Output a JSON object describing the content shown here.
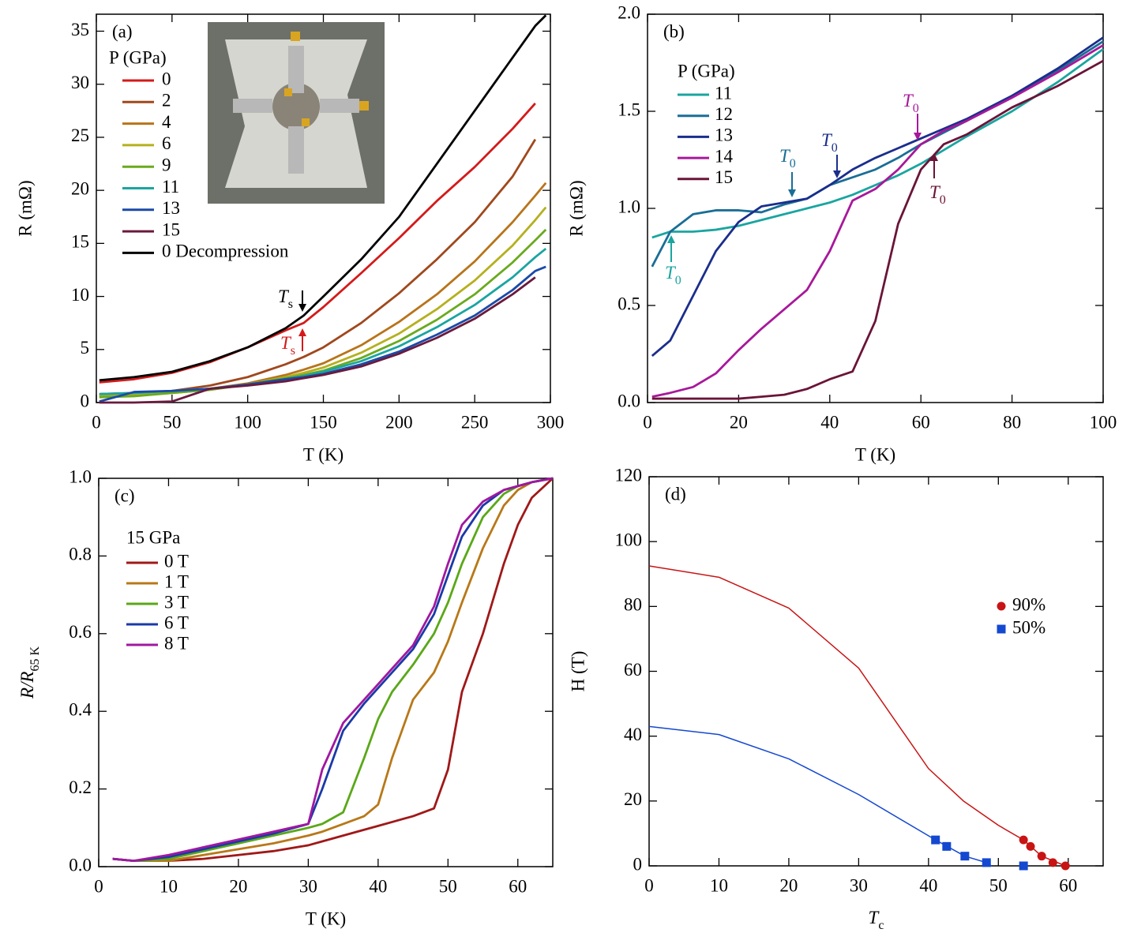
{
  "chart_data": [
    {
      "type": "line",
      "panel_label": "(a)",
      "xlabel": "T (K)",
      "ylabel": "R (mΩ)",
      "legend_title": "P (GPa)",
      "xlim": [
        0,
        300
      ],
      "ylim": [
        0,
        36.6
      ],
      "xticks": [
        0,
        50,
        100,
        150,
        200,
        250,
        300
      ],
      "yticks": [
        0,
        5,
        10,
        15,
        20,
        25,
        30,
        35
      ],
      "x": [
        2,
        25,
        50,
        75,
        100,
        125,
        137,
        150,
        175,
        200,
        225,
        250,
        275,
        290,
        297
      ],
      "series": [
        {
          "name": "0",
          "color": "#d41a1a",
          "values": [
            1.9,
            2.2,
            2.8,
            3.8,
            5.2,
            6.8,
            7.5,
            9,
            12.2,
            15.5,
            19,
            22.2,
            25.8,
            28.2,
            null
          ]
        },
        {
          "name": "2",
          "color": "#a0481d",
          "values": [
            0.8,
            0.9,
            1.1,
            1.6,
            2.4,
            3.6,
            4.3,
            5.2,
            7.5,
            10.3,
            13.5,
            17,
            21.3,
            24.8,
            null
          ]
        },
        {
          "name": "4",
          "color": "#b8741a",
          "values": [
            0.7,
            0.8,
            1.0,
            1.3,
            1.8,
            2.6,
            3.1,
            3.7,
            5.4,
            7.6,
            10.2,
            13.3,
            17,
            19.5,
            20.7
          ]
        },
        {
          "name": "6",
          "color": "#b5b01e",
          "values": [
            0.6,
            0.7,
            0.9,
            1.2,
            1.7,
            2.4,
            2.8,
            3.3,
            4.7,
            6.5,
            8.8,
            11.5,
            14.8,
            17.2,
            18.4
          ]
        },
        {
          "name": "9",
          "color": "#6aaa1e",
          "values": [
            0.5,
            0.6,
            0.9,
            1.2,
            1.7,
            2.3,
            2.6,
            3.0,
            4.2,
            5.8,
            7.8,
            10.2,
            13.2,
            15.3,
            16.3
          ]
        },
        {
          "name": "11",
          "color": "#1aa5a0",
          "values": [
            0.8,
            0.9,
            1.1,
            1.3,
            1.7,
            2.2,
            2.5,
            2.9,
            3.9,
            5.3,
            7.1,
            9.2,
            11.8,
            13.7,
            14.5
          ]
        },
        {
          "name": "13",
          "color": "#1a4aa8",
          "values": [
            0.1,
            1.0,
            1.1,
            1.3,
            1.7,
            2.2,
            2.4,
            2.7,
            3.6,
            4.8,
            6.4,
            8.2,
            10.6,
            12.4,
            12.8
          ]
        },
        {
          "name": "15",
          "color": "#6a1a3e",
          "values": [
            0.0,
            0.0,
            0.1,
            1.3,
            1.6,
            2.0,
            2.3,
            2.6,
            3.4,
            4.6,
            6.1,
            7.9,
            10.2,
            11.8,
            null
          ]
        },
        {
          "name": "0 Decompression",
          "color": "#000000",
          "values": [
            2.1,
            2.4,
            2.9,
            3.9,
            5.2,
            7.0,
            8.2,
            10,
            13.5,
            17.5,
            22.5,
            27.5,
            32.5,
            35.5,
            36.5
          ]
        }
      ],
      "annotations": [
        {
          "text": "T",
          "sub": "s",
          "color": "#000000"
        },
        {
          "text": "T",
          "sub": "s",
          "color": "#d41a1a"
        }
      ]
    },
    {
      "type": "line",
      "panel_label": "(b)",
      "xlabel": "T (K)",
      "ylabel": "R (mΩ)",
      "legend_title": "P (GPa)",
      "xlim": [
        0,
        100
      ],
      "ylim": [
        0,
        2
      ],
      "xticks": [
        0,
        20,
        40,
        60,
        80,
        100
      ],
      "yticks": [
        {
          "value": 0,
          "label": "0.0"
        },
        0.5,
        {
          "value": 1,
          "label": "1.0"
        },
        1.5,
        {
          "value": 2,
          "label": "2.0"
        }
      ],
      "x": [
        1,
        5,
        10,
        15,
        20,
        25,
        30,
        35,
        40,
        45,
        50,
        55,
        60,
        65,
        70,
        80,
        90,
        100
      ],
      "series": [
        {
          "name": "11",
          "color": "#1aa5a0",
          "values": [
            0.85,
            0.88,
            0.88,
            0.89,
            0.91,
            0.94,
            0.97,
            1.0,
            1.03,
            1.07,
            1.12,
            1.17,
            1.23,
            1.3,
            1.37,
            1.5,
            1.65,
            1.82
          ]
        },
        {
          "name": "12",
          "color": "#1a6e96",
          "values": [
            0.7,
            0.88,
            0.97,
            0.99,
            0.99,
            0.98,
            1.02,
            1.05,
            1.12,
            1.16,
            1.2,
            1.26,
            1.33,
            1.39,
            1.45,
            1.58,
            1.71,
            1.86
          ]
        },
        {
          "name": "13",
          "color": "#1a2e8c",
          "values": [
            0.24,
            0.32,
            0.55,
            0.78,
            0.93,
            1.01,
            1.03,
            1.05,
            1.12,
            1.2,
            1.26,
            1.31,
            1.36,
            1.41,
            1.46,
            1.58,
            1.72,
            1.88
          ]
        },
        {
          "name": "14",
          "color": "#a8189a",
          "values": [
            0.03,
            0.05,
            0.08,
            0.15,
            0.27,
            0.38,
            0.48,
            0.58,
            0.78,
            1.04,
            1.1,
            1.2,
            1.33,
            1.4,
            1.45,
            1.57,
            1.7,
            1.84
          ]
        },
        {
          "name": "15",
          "color": "#6a1438",
          "values": [
            0.02,
            0.02,
            0.02,
            0.02,
            0.02,
            0.03,
            0.04,
            0.07,
            0.12,
            0.16,
            0.42,
            0.92,
            1.2,
            1.33,
            1.38,
            1.52,
            1.63,
            1.76
          ]
        }
      ],
      "annotations": [
        {
          "text": "T",
          "sub": "0",
          "color": "#1aa5a0"
        },
        {
          "text": "T",
          "sub": "0",
          "color": "#1a6e96"
        },
        {
          "text": "T",
          "sub": "0",
          "color": "#1a2e8c"
        },
        {
          "text": "T",
          "sub": "0",
          "color": "#a8189a"
        },
        {
          "text": "T",
          "sub": "0",
          "color": "#6a1438"
        }
      ]
    },
    {
      "type": "line",
      "panel_label": "(c)",
      "xlabel": "T (K)",
      "ylabel": {
        "text": "R/R",
        "sub": "65 K"
      },
      "legend_title": "15 GPa",
      "xlim": [
        0,
        65
      ],
      "ylim": [
        0,
        1
      ],
      "xticks": [
        0,
        10,
        20,
        30,
        40,
        50,
        60
      ],
      "yticks": [
        {
          "value": 0,
          "label": "0.0"
        },
        0.2,
        0.4,
        0.6,
        0.8,
        {
          "value": 1,
          "label": "1.0"
        }
      ],
      "x": [
        2,
        5,
        10,
        15,
        20,
        25,
        30,
        32,
        35,
        38,
        40,
        42,
        45,
        48,
        50,
        52,
        55,
        58,
        60,
        62,
        65
      ],
      "series": [
        {
          "name": "0 T",
          "color": "#a01818",
          "values": [
            0.02,
            0.015,
            0.015,
            0.02,
            0.03,
            0.04,
            0.055,
            0.065,
            0.08,
            0.095,
            0.105,
            0.115,
            0.13,
            0.15,
            0.25,
            0.45,
            0.6,
            0.78,
            0.88,
            0.95,
            1.0
          ]
        },
        {
          "name": "1 T",
          "color": "#b87818",
          "values": [
            0.02,
            0.015,
            0.015,
            0.03,
            0.045,
            0.06,
            0.08,
            0.09,
            0.11,
            0.13,
            0.16,
            0.28,
            0.43,
            0.5,
            0.58,
            0.68,
            0.82,
            0.93,
            0.97,
            0.99,
            1.0
          ]
        },
        {
          "name": "3 T",
          "color": "#5aa818",
          "values": [
            0.02,
            0.015,
            0.02,
            0.04,
            0.06,
            0.08,
            0.1,
            0.11,
            0.14,
            0.28,
            0.38,
            0.45,
            0.52,
            0.6,
            0.68,
            0.78,
            0.9,
            0.96,
            0.98,
            0.99,
            1.0
          ]
        },
        {
          "name": "6 T",
          "color": "#1a3aa8",
          "values": [
            0.02,
            0.015,
            0.025,
            0.045,
            0.065,
            0.085,
            0.11,
            0.2,
            0.35,
            0.42,
            0.46,
            0.5,
            0.56,
            0.65,
            0.75,
            0.85,
            0.93,
            0.97,
            0.98,
            0.99,
            1.0
          ]
        },
        {
          "name": "8 T",
          "color": "#a018a0",
          "values": [
            0.02,
            0.015,
            0.03,
            0.05,
            0.07,
            0.09,
            0.11,
            0.25,
            0.37,
            0.43,
            0.47,
            0.51,
            0.57,
            0.67,
            0.78,
            0.88,
            0.94,
            0.97,
            0.98,
            0.99,
            1.0
          ]
        }
      ]
    },
    {
      "type": "scatter",
      "panel_label": "(d)",
      "xlabel": {
        "text": "T",
        "sub": "c"
      },
      "ylabel": "H (T)",
      "xlim": [
        0,
        65
      ],
      "ylim": [
        0,
        120
      ],
      "xticks": [
        0,
        10,
        20,
        30,
        40,
        50,
        60
      ],
      "yticks": [
        0,
        20,
        40,
        60,
        80,
        100,
        120
      ],
      "series": [
        {
          "name": "90%",
          "color": "#c81414",
          "marker": "circle",
          "x": [
            53.6,
            54.6,
            56.2,
            57.8,
            59.6
          ],
          "values": [
            8,
            6,
            3,
            1,
            0
          ]
        },
        {
          "name": "50%",
          "color": "#1448d0",
          "marker": "square",
          "x": [
            41,
            42.6,
            45.2,
            48.3,
            53.6
          ],
          "values": [
            8,
            6,
            3,
            1,
            0
          ]
        }
      ],
      "fits": [
        {
          "color": "#c81414",
          "x": [
            0,
            10,
            20,
            30,
            40,
            45,
            50,
            53.6,
            56.2,
            59.6
          ],
          "values": [
            92.5,
            89,
            79.5,
            61,
            30,
            20,
            12.5,
            8,
            3,
            0
          ]
        },
        {
          "color": "#1448d0",
          "x": [
            0,
            10,
            20,
            30,
            41,
            45.2,
            48.3,
            49
          ],
          "values": [
            43,
            40.5,
            33,
            22,
            8,
            3,
            1,
            0
          ]
        }
      ]
    }
  ]
}
